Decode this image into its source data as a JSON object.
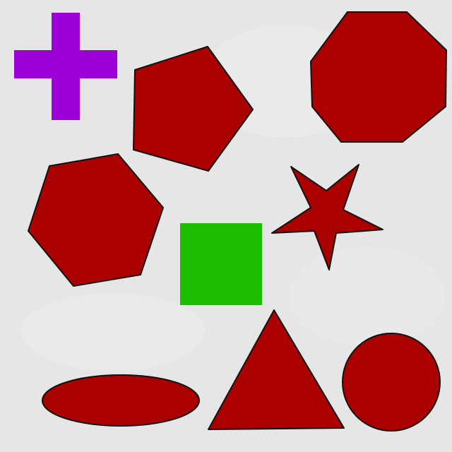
{
  "colors": {
    "background": "#e6e6e6",
    "dark_red": "#aa0000",
    "purple": "#9b00d6",
    "green": "#1bbf00",
    "outline": "#111111"
  },
  "shapes": [
    {
      "id": "cross",
      "kind": "cross",
      "color": "purple"
    },
    {
      "id": "pentagon",
      "kind": "pentagon",
      "color": "dark_red"
    },
    {
      "id": "octagon",
      "kind": "octagon",
      "color": "dark_red"
    },
    {
      "id": "hexagon",
      "kind": "hexagon",
      "color": "dark_red"
    },
    {
      "id": "square",
      "kind": "square",
      "color": "green"
    },
    {
      "id": "star",
      "kind": "star",
      "color": "dark_red"
    },
    {
      "id": "ellipse",
      "kind": "ellipse",
      "color": "dark_red"
    },
    {
      "id": "triangle",
      "kind": "triangle",
      "color": "dark_red"
    },
    {
      "id": "circle",
      "kind": "circle",
      "color": "dark_red"
    }
  ]
}
